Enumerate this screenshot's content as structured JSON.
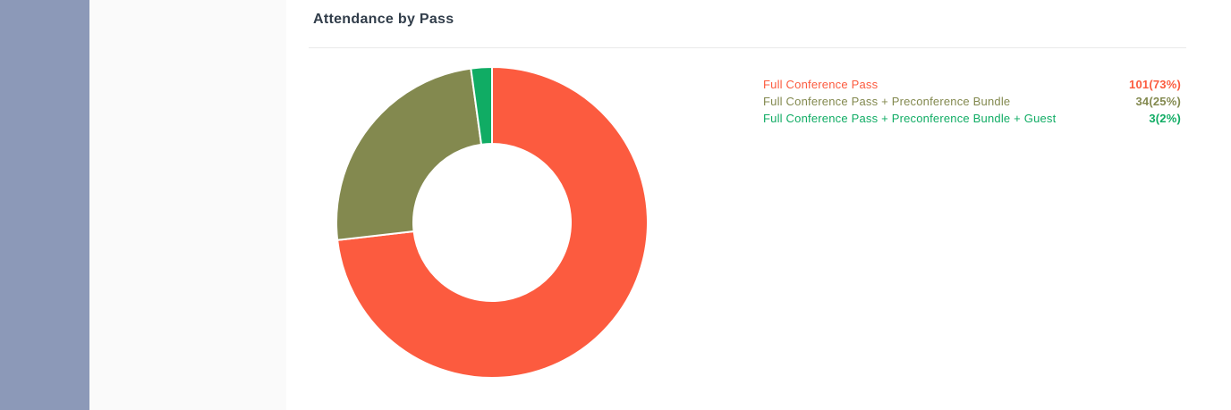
{
  "card": {
    "title": "Attendance by Pass"
  },
  "sidebar": {
    "color": "#8C99B8"
  },
  "panel": {
    "color": "#FAFAFA"
  },
  "divider_color": "#E9E9E9",
  "title_color": "#313D4A",
  "chart_data": {
    "type": "pie",
    "subtype": "donut",
    "title": "Attendance by Pass",
    "start_angle_deg": 0,
    "direction": "clockwise",
    "inner_radius_ratio": 0.5,
    "segment_gap_color": "#FFFFFF",
    "legend_position": "right",
    "legend_style": "colored-text-no-markers",
    "categories": [
      "Full Conference Pass",
      "Full Conference Pass + Preconference Bundle",
      "Full Conference Pass + Preconference Bundle + Guest"
    ],
    "values": [
      101,
      34,
      3
    ],
    "total": 138,
    "percents": [
      73,
      25,
      2
    ],
    "display_values": [
      "101(73%)",
      "34(25%)",
      "3(2%)"
    ],
    "colors": [
      "#FC5B3F",
      "#83894F",
      "#10AC64"
    ]
  }
}
